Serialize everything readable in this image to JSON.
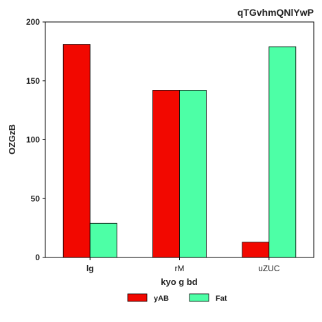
{
  "chart_data": {
    "type": "bar",
    "title": "qTGvhmQNlYwP",
    "xlabel": "kyo g bd",
    "ylabel": "OZGzB",
    "categories": [
      "lg",
      "rM",
      "uZUC"
    ],
    "series": [
      {
        "name": "yAB",
        "values": [
          181,
          142,
          13
        ],
        "color": "#f20800"
      },
      {
        "name": "Fat",
        "values": [
          29,
          142,
          179
        ],
        "color": "#4dffa6"
      }
    ],
    "ylim": [
      0,
      200
    ],
    "yticks": [
      "0",
      "50",
      "100",
      "150",
      "200"
    ],
    "grid": false,
    "legend_position": "bottom-center"
  }
}
